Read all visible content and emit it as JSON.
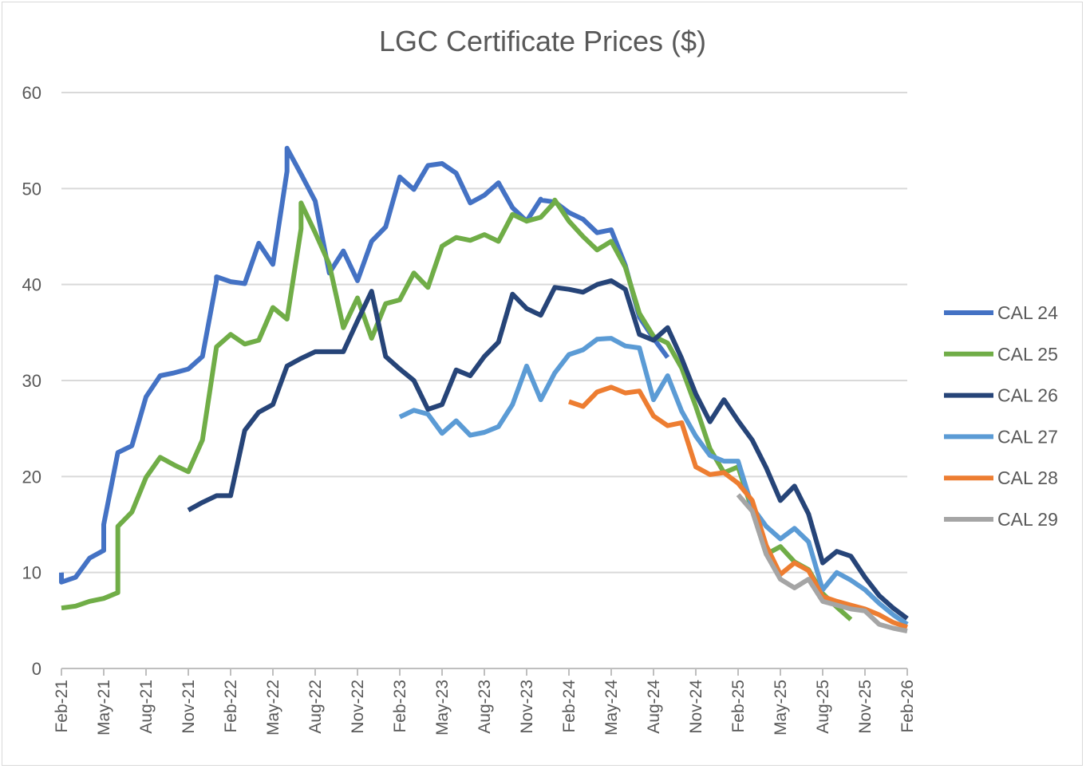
{
  "chart_data": {
    "type": "line",
    "title": "LGC Certificate Prices ($)",
    "xlabel": "",
    "ylabel": "",
    "ylim": [
      0,
      60
    ],
    "yticks": [
      "0",
      "10",
      "20",
      "30",
      "40",
      "50",
      "60"
    ],
    "ytick_values": [
      0,
      10,
      20,
      30,
      40,
      50,
      60
    ],
    "x": [
      "Feb-21",
      "Mar-21",
      "Apr-21",
      "May-21",
      "Jun-21",
      "Jul-21",
      "Aug-21",
      "Sep-21",
      "Oct-21",
      "Nov-21",
      "Dec-21",
      "Jan-22",
      "Feb-22",
      "Mar-22",
      "Apr-22",
      "May-22",
      "Jun-22",
      "Jul-22",
      "Aug-22",
      "Sep-22",
      "Oct-22",
      "Nov-22",
      "Dec-22",
      "Jan-23",
      "Feb-23",
      "Mar-23",
      "Apr-23",
      "May-23",
      "Jun-23",
      "Jul-23",
      "Aug-23",
      "Sep-23",
      "Oct-23",
      "Nov-23",
      "Dec-23",
      "Jan-24",
      "Feb-24",
      "Mar-24",
      "Apr-24",
      "May-24",
      "Jun-24",
      "Jul-24",
      "Aug-24",
      "Sep-24",
      "Oct-24",
      "Nov-24",
      "Dec-24",
      "Jan-25",
      "Feb-25",
      "Mar-25",
      "Apr-25",
      "May-25",
      "Jun-25",
      "Jul-25",
      "Aug-25",
      "Sep-25",
      "Oct-25",
      "Nov-25",
      "Dec-25",
      "Jan-26",
      "Feb-26"
    ],
    "xticks": [
      "Feb-21",
      "May-21",
      "Aug-21",
      "Nov-21",
      "Feb-22",
      "May-22",
      "Aug-22",
      "Nov-22",
      "Feb-23",
      "May-23",
      "Aug-23",
      "Nov-23",
      "Feb-24",
      "May-24",
      "Aug-24",
      "Nov-24",
      "Feb-25",
      "May-25",
      "Aug-25",
      "Nov-25",
      "Feb-26"
    ],
    "grid": "horizontal",
    "legend_position": "right",
    "series": [
      {
        "name": "CAL 24",
        "color": "#4472C4",
        "points": [
          [
            "Feb-21",
            10
          ],
          [
            "Feb-21",
            9
          ],
          [
            "Mar-21",
            9.5
          ],
          [
            "Apr-21",
            11.5
          ],
          [
            "May-21",
            12.3
          ],
          [
            "May-21",
            15
          ],
          [
            "Jun-21",
            22.5
          ],
          [
            "Jul-21",
            23.2
          ],
          [
            "Aug-21",
            28.3
          ],
          [
            "Sep-21",
            30.5
          ],
          [
            "Oct-21",
            30.8
          ],
          [
            "Nov-21",
            31.2
          ],
          [
            "Dec-21",
            32.5
          ],
          [
            "Jan-22",
            40.4
          ],
          [
            "Jan-22",
            40.8
          ],
          [
            "Feb-22",
            40.3
          ],
          [
            "Mar-22",
            40.1
          ],
          [
            "Apr-22",
            44.3
          ],
          [
            "May-22",
            42.1
          ],
          [
            "Jun-22",
            51.8
          ],
          [
            "Jun-22",
            54.2
          ],
          [
            "Jul-22",
            51.5
          ],
          [
            "Aug-22",
            48.7
          ],
          [
            "Sep-22",
            41.2
          ],
          [
            "Oct-22",
            43.5
          ],
          [
            "Nov-22",
            40.4
          ],
          [
            "Dec-22",
            44.5
          ],
          [
            "Jan-23",
            46
          ],
          [
            "Feb-23",
            51.2
          ],
          [
            "Mar-23",
            49.9
          ],
          [
            "Apr-23",
            52.4
          ],
          [
            "May-23",
            52.6
          ],
          [
            "Jun-23",
            51.6
          ],
          [
            "Jul-23",
            48.5
          ],
          [
            "Aug-23",
            49.3
          ],
          [
            "Sep-23",
            50.6
          ],
          [
            "Oct-23",
            48
          ],
          [
            "Nov-23",
            46.6
          ],
          [
            "Dec-23",
            48.9
          ],
          [
            "Dec-23",
            48.8
          ],
          [
            "Jan-24",
            48.6
          ],
          [
            "Feb-24",
            47.5
          ],
          [
            "Mar-24",
            46.8
          ],
          [
            "Apr-24",
            45.4
          ],
          [
            "May-24",
            45.7
          ],
          [
            "Jun-24",
            42
          ],
          [
            "Jul-24",
            36.6
          ],
          [
            "Aug-24",
            34.4
          ],
          [
            "Sep-24",
            32.4
          ]
        ]
      },
      {
        "name": "CAL 25",
        "color": "#70AD47",
        "points": [
          [
            "Feb-21",
            6.3
          ],
          [
            "Mar-21",
            6.5
          ],
          [
            "Apr-21",
            7
          ],
          [
            "May-21",
            7.3
          ],
          [
            "Jun-21",
            7.9
          ],
          [
            "Jun-21",
            14.8
          ],
          [
            "Jul-21",
            16.3
          ],
          [
            "Aug-21",
            19.9
          ],
          [
            "Sep-21",
            22
          ],
          [
            "Oct-21",
            21.2
          ],
          [
            "Nov-21",
            20.5
          ],
          [
            "Dec-21",
            23.8
          ],
          [
            "Jan-22",
            33.5
          ],
          [
            "Feb-22",
            34.8
          ],
          [
            "Mar-22",
            33.8
          ],
          [
            "Apr-22",
            34.2
          ],
          [
            "May-22",
            37.6
          ],
          [
            "Jun-22",
            36.4
          ],
          [
            "Jul-22",
            45.8
          ],
          [
            "Jul-22",
            48.5
          ],
          [
            "Aug-22",
            45.4
          ],
          [
            "Sep-22",
            42.1
          ],
          [
            "Oct-22",
            35.5
          ],
          [
            "Nov-22",
            38.6
          ],
          [
            "Dec-22",
            34.4
          ],
          [
            "Jan-23",
            38
          ],
          [
            "Feb-23",
            38.4
          ],
          [
            "Mar-23",
            41.2
          ],
          [
            "Apr-23",
            39.7
          ],
          [
            "May-23",
            44
          ],
          [
            "Jun-23",
            44.9
          ],
          [
            "Jul-23",
            44.6
          ],
          [
            "Aug-23",
            45.2
          ],
          [
            "Sep-23",
            44.5
          ],
          [
            "Oct-23",
            47.3
          ],
          [
            "Nov-23",
            46.6
          ],
          [
            "Dec-23",
            47
          ],
          [
            "Jan-24",
            48.6
          ],
          [
            "Jan-24",
            48.8
          ],
          [
            "Feb-24",
            46.6
          ],
          [
            "Mar-24",
            45
          ],
          [
            "Apr-24",
            43.6
          ],
          [
            "May-24",
            44.5
          ],
          [
            "Jun-24",
            41.8
          ],
          [
            "Jul-24",
            37
          ],
          [
            "Aug-24",
            34.6
          ],
          [
            "Sep-24",
            33.9
          ],
          [
            "Oct-24",
            31.3
          ],
          [
            "Nov-24",
            27.3
          ],
          [
            "Dec-24",
            22.9
          ],
          [
            "Jan-25",
            20.4
          ],
          [
            "Feb-25",
            21
          ],
          [
            "Mar-25",
            16.5
          ],
          [
            "Apr-25",
            11.9
          ],
          [
            "May-25",
            12.7
          ],
          [
            "Jun-25",
            11.1
          ],
          [
            "Jul-25",
            10.3
          ],
          [
            "Aug-25",
            7.8
          ],
          [
            "Sep-25",
            6.4
          ],
          [
            "Oct-25",
            5.1
          ]
        ]
      },
      {
        "name": "CAL 26",
        "color": "#264478",
        "points": [
          [
            "Nov-21",
            16.5
          ],
          [
            "Dec-21",
            17.3
          ],
          [
            "Jan-22",
            18
          ],
          [
            "Feb-22",
            18
          ],
          [
            "Mar-22",
            24.8
          ],
          [
            "Apr-22",
            26.7
          ],
          [
            "May-22",
            27.5
          ],
          [
            "Jun-22",
            31.5
          ],
          [
            "Jul-22",
            32.3
          ],
          [
            "Aug-22",
            33
          ],
          [
            "Sep-22",
            33
          ],
          [
            "Oct-22",
            33
          ],
          [
            "Nov-22",
            36.2
          ],
          [
            "Dec-22",
            39.3
          ],
          [
            "Jan-23",
            32.5
          ],
          [
            "Feb-23",
            31.2
          ],
          [
            "Mar-23",
            30
          ],
          [
            "Apr-23",
            27
          ],
          [
            "May-23",
            27.5
          ],
          [
            "Jun-23",
            31.1
          ],
          [
            "Jul-23",
            30.5
          ],
          [
            "Aug-23",
            32.5
          ],
          [
            "Sep-23",
            34
          ],
          [
            "Oct-23",
            39
          ],
          [
            "Nov-23",
            37.5
          ],
          [
            "Dec-23",
            36.8
          ],
          [
            "Jan-24",
            39.7
          ],
          [
            "Feb-24",
            39.5
          ],
          [
            "Mar-24",
            39.2
          ],
          [
            "Apr-24",
            40
          ],
          [
            "May-24",
            40.4
          ],
          [
            "Jun-24",
            39.5
          ],
          [
            "Jul-24",
            34.8
          ],
          [
            "Aug-24",
            34.2
          ],
          [
            "Sep-24",
            35.5
          ],
          [
            "Oct-24",
            32.3
          ],
          [
            "Nov-24",
            28.6
          ],
          [
            "Dec-24",
            25.7
          ],
          [
            "Jan-25",
            28
          ],
          [
            "Feb-25",
            25.8
          ],
          [
            "Mar-25",
            23.8
          ],
          [
            "Apr-25",
            20.9
          ],
          [
            "May-25",
            17.5
          ],
          [
            "Jun-25",
            19
          ],
          [
            "Jul-25",
            16.1
          ],
          [
            "Aug-25",
            11
          ],
          [
            "Sep-25",
            12.2
          ],
          [
            "Oct-25",
            11.7
          ],
          [
            "Nov-25",
            9.5
          ],
          [
            "Dec-25",
            7.6
          ],
          [
            "Jan-26",
            6.3
          ],
          [
            "Feb-26",
            5.2
          ]
        ]
      },
      {
        "name": "CAL 27",
        "color": "#5B9BD5",
        "points": [
          [
            "Feb-23",
            26.2
          ],
          [
            "Mar-23",
            26.9
          ],
          [
            "Apr-23",
            26.5
          ],
          [
            "May-23",
            24.5
          ],
          [
            "Jun-23",
            25.8
          ],
          [
            "Jul-23",
            24.3
          ],
          [
            "Aug-23",
            24.6
          ],
          [
            "Sep-23",
            25.2
          ],
          [
            "Oct-23",
            27.5
          ],
          [
            "Nov-23",
            31.5
          ],
          [
            "Dec-23",
            28
          ],
          [
            "Jan-24",
            30.8
          ],
          [
            "Feb-24",
            32.7
          ],
          [
            "Mar-24",
            33.2
          ],
          [
            "Apr-24",
            34.3
          ],
          [
            "May-24",
            34.4
          ],
          [
            "Jun-24",
            33.6
          ],
          [
            "Jul-24",
            33.4
          ],
          [
            "Aug-24",
            28
          ],
          [
            "Sep-24",
            30.5
          ],
          [
            "Oct-24",
            26.8
          ],
          [
            "Nov-24",
            24.2
          ],
          [
            "Dec-24",
            22.2
          ],
          [
            "Jan-25",
            21.6
          ],
          [
            "Feb-25",
            21.6
          ],
          [
            "Mar-25",
            16.8
          ],
          [
            "Apr-25",
            14.8
          ],
          [
            "May-25",
            13.5
          ],
          [
            "Jun-25",
            14.6
          ],
          [
            "Jul-25",
            13.2
          ],
          [
            "Aug-25",
            8.2
          ],
          [
            "Sep-25",
            10
          ],
          [
            "Oct-25",
            9.2
          ],
          [
            "Nov-25",
            8.2
          ],
          [
            "Dec-25",
            6.8
          ],
          [
            "Jan-26",
            5.6
          ],
          [
            "Feb-26",
            4.6
          ]
        ]
      },
      {
        "name": "CAL 28",
        "color": "#ED7D31",
        "points": [
          [
            "Feb-24",
            27.8
          ],
          [
            "Mar-24",
            27.3
          ],
          [
            "Apr-24",
            28.8
          ],
          [
            "May-24",
            29.3
          ],
          [
            "Jun-24",
            28.7
          ],
          [
            "Jul-24",
            28.9
          ],
          [
            "Aug-24",
            26.3
          ],
          [
            "Sep-24",
            25.3
          ],
          [
            "Oct-24",
            25.6
          ],
          [
            "Nov-24",
            21
          ],
          [
            "Dec-24",
            20.2
          ],
          [
            "Jan-25",
            20.4
          ],
          [
            "Feb-25",
            19.3
          ],
          [
            "Mar-25",
            17.5
          ],
          [
            "Apr-25",
            12.8
          ],
          [
            "May-25",
            9.8
          ],
          [
            "Jun-25",
            11
          ],
          [
            "Jul-25",
            10.2
          ],
          [
            "Aug-25",
            7.5
          ],
          [
            "Sep-25",
            7
          ],
          [
            "Oct-25",
            6.6
          ],
          [
            "Nov-25",
            6.2
          ],
          [
            "Dec-25",
            5.6
          ],
          [
            "Jan-26",
            4.8
          ],
          [
            "Feb-26",
            4.3
          ]
        ]
      },
      {
        "name": "CAL 29",
        "color": "#A5A5A5",
        "points": [
          [
            "Feb-25",
            18.1
          ],
          [
            "Mar-25",
            16.4
          ],
          [
            "Apr-25",
            11.9
          ],
          [
            "May-25",
            9.3
          ],
          [
            "Jun-25",
            8.4
          ],
          [
            "Jul-25",
            9.3
          ],
          [
            "Aug-25",
            7
          ],
          [
            "Sep-25",
            6.6
          ],
          [
            "Oct-25",
            6.2
          ],
          [
            "Nov-25",
            6
          ],
          [
            "Dec-25",
            4.6
          ],
          [
            "Jan-26",
            4.2
          ],
          [
            "Feb-26",
            3.9
          ]
        ]
      }
    ]
  }
}
